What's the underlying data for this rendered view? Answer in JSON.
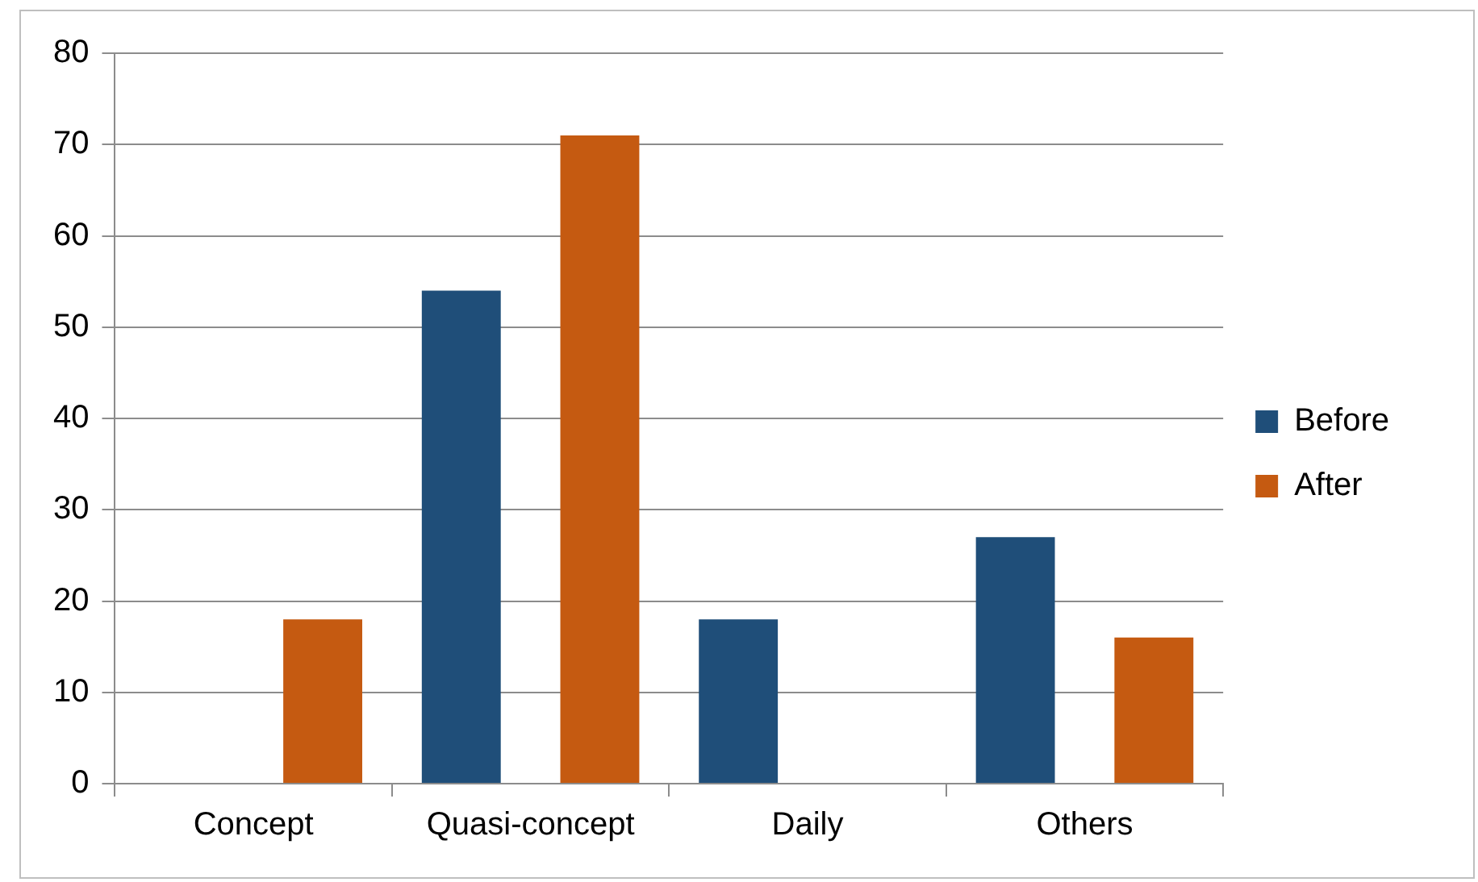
{
  "chart_data": {
    "type": "bar",
    "categories": [
      "Concept",
      "Quasi-concept",
      "Daily",
      "Others"
    ],
    "series": [
      {
        "name": "Before",
        "color": "#1f4e79",
        "values": [
          0,
          54,
          18,
          27
        ]
      },
      {
        "name": "After",
        "color": "#c55a11",
        "values": [
          18,
          71,
          0,
          16
        ]
      }
    ],
    "ylim": [
      0,
      80
    ],
    "yticks": [
      0,
      10,
      20,
      30,
      40,
      50,
      60,
      70,
      80
    ],
    "grid": "y",
    "legend": "right"
  }
}
